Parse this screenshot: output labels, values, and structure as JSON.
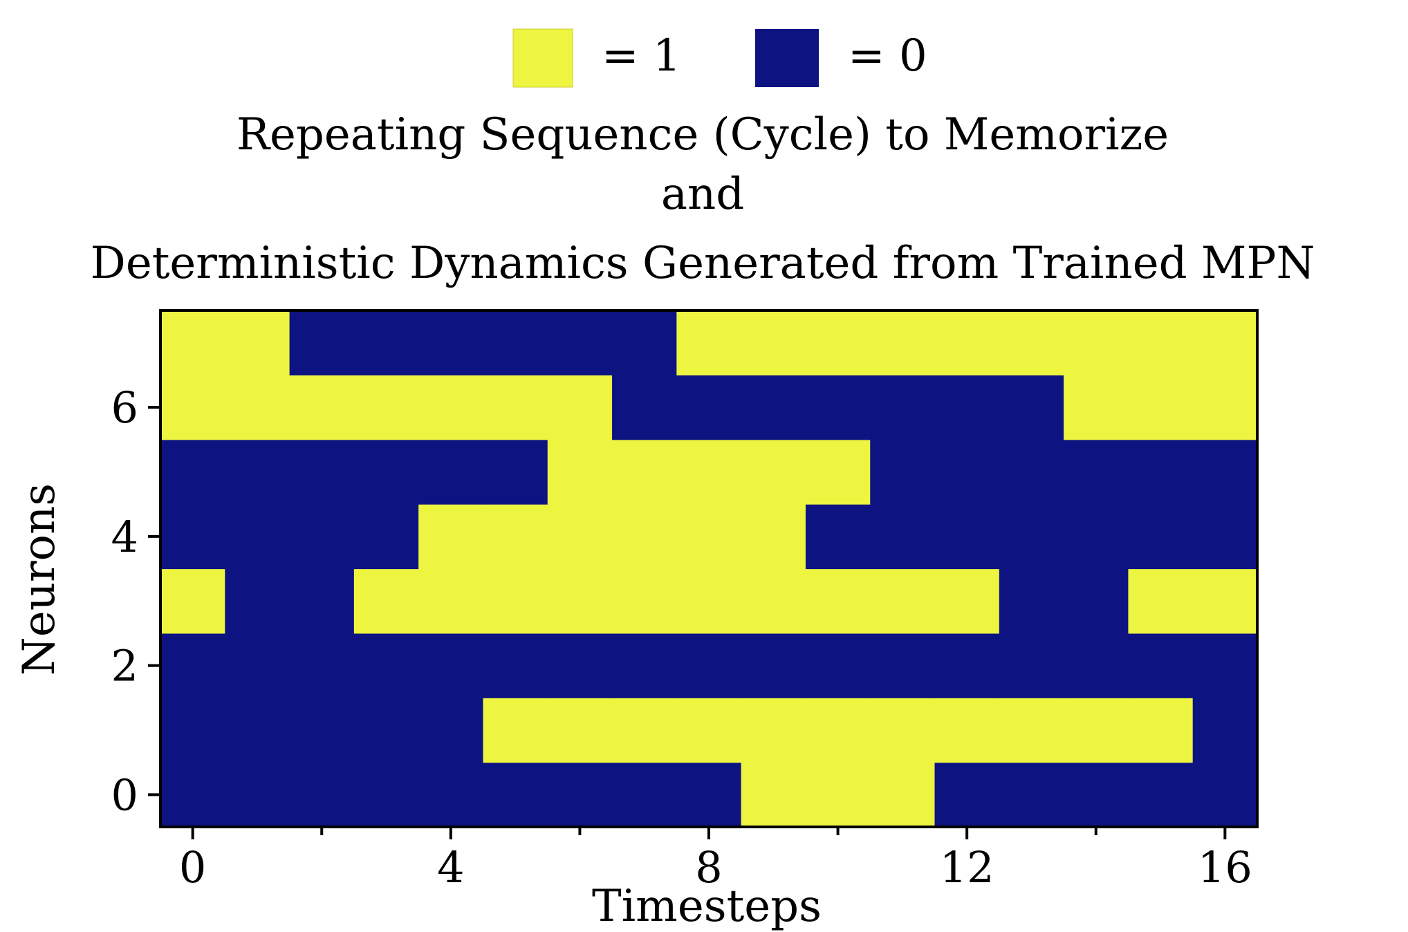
{
  "chart_data": {
    "type": "heatmap",
    "title_lines": [
      "Repeating Sequence (Cycle) to Memorize",
      "and",
      "Deterministic Dynamics Generated from Trained MPN"
    ],
    "xlabel": "Timesteps",
    "ylabel": "Neurons",
    "x_ticks": [
      0,
      4,
      8,
      12,
      16
    ],
    "x_tick_labels": [
      "0",
      "4",
      "8",
      "12",
      "16"
    ],
    "y_ticks": [
      0,
      2,
      4,
      6
    ],
    "y_tick_labels": [
      "0",
      "2",
      "4",
      "6"
    ],
    "xlim": [
      -0.5,
      16.5
    ],
    "ylim": [
      -0.5,
      7.5
    ],
    "legend": [
      {
        "label": "= 1",
        "value": 1,
        "color": "#eef540"
      },
      {
        "label": "= 0",
        "value": 0,
        "color": "#0e1382"
      }
    ],
    "legend_position": "top-center",
    "colors": {
      "one": "#eef540",
      "zero": "#0e1382"
    },
    "neurons": [
      0,
      1,
      2,
      3,
      4,
      5,
      6,
      7
    ],
    "timesteps": [
      0,
      1,
      2,
      3,
      4,
      5,
      6,
      7,
      8,
      9,
      10,
      11,
      12,
      13,
      14,
      15,
      16
    ],
    "values": [
      [
        0,
        0,
        0,
        0,
        0,
        0,
        0,
        0,
        0,
        1,
        1,
        1,
        0,
        0,
        0,
        0,
        0
      ],
      [
        0,
        0,
        0,
        0,
        0,
        1,
        1,
        1,
        1,
        1,
        1,
        1,
        1,
        1,
        1,
        1,
        0
      ],
      [
        0,
        0,
        0,
        0,
        0,
        0,
        0,
        0,
        0,
        0,
        0,
        0,
        0,
        0,
        0,
        0,
        0
      ],
      [
        1,
        0,
        0,
        1,
        1,
        1,
        1,
        1,
        1,
        1,
        1,
        1,
        1,
        0,
        0,
        1,
        1
      ],
      [
        0,
        0,
        0,
        0,
        1,
        1,
        1,
        1,
        1,
        1,
        0,
        0,
        0,
        0,
        0,
        0,
        0
      ],
      [
        0,
        0,
        0,
        0,
        0,
        0,
        1,
        1,
        1,
        1,
        1,
        0,
        0,
        0,
        0,
        0,
        0
      ],
      [
        1,
        1,
        1,
        1,
        1,
        1,
        1,
        0,
        0,
        0,
        0,
        0,
        0,
        0,
        1,
        1,
        1
      ],
      [
        1,
        1,
        0,
        0,
        0,
        0,
        0,
        0,
        1,
        1,
        1,
        1,
        1,
        1,
        1,
        1,
        1
      ]
    ]
  }
}
